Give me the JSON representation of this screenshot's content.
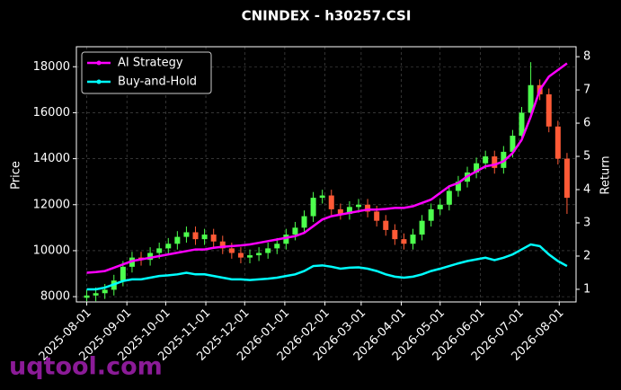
{
  "chart_data": {
    "type": "candlestick",
    "title": "CNINDEX - h30257.CSI",
    "ylabel": "Price",
    "y2label": "Return",
    "watermark": "uqtool.com",
    "x": [
      "2025-08-01",
      "2025-08-08",
      "2025-08-15",
      "2025-08-22",
      "2025-08-29",
      "2025-09-05",
      "2025-09-12",
      "2025-09-19",
      "2025-09-26",
      "2025-10-03",
      "2025-10-10",
      "2025-10-17",
      "2025-10-24",
      "2025-10-31",
      "2025-11-07",
      "2025-11-14",
      "2025-11-21",
      "2025-11-28",
      "2025-12-05",
      "2025-12-12",
      "2025-12-19",
      "2025-12-26",
      "2026-01-02",
      "2026-01-09",
      "2026-01-16",
      "2026-01-23",
      "2026-01-30",
      "2026-02-06",
      "2026-02-13",
      "2026-02-20",
      "2026-02-27",
      "2026-03-06",
      "2026-03-13",
      "2026-03-20",
      "2026-03-27",
      "2026-04-03",
      "2026-04-10",
      "2026-04-17",
      "2026-04-24",
      "2026-05-01",
      "2026-05-08",
      "2026-05-15",
      "2026-05-22",
      "2026-05-29",
      "2026-06-05",
      "2026-06-12",
      "2026-06-19",
      "2026-06-26",
      "2026-07-03",
      "2026-07-10",
      "2026-07-17",
      "2026-07-24",
      "2026-07-31",
      "2026-08-07"
    ],
    "open": [
      7950,
      8050,
      8150,
      8300,
      8700,
      9300,
      9700,
      9600,
      9900,
      10100,
      10300,
      10600,
      10800,
      10500,
      10700,
      10400,
      10100,
      9900,
      9700,
      9800,
      9900,
      10100,
      10300,
      10700,
      11000,
      11500,
      12300,
      12400,
      11800,
      11600,
      11900,
      12000,
      11700,
      11300,
      10900,
      10500,
      10300,
      10700,
      11300,
      11800,
      12000,
      12600,
      13000,
      13400,
      13800,
      14100,
      13600,
      14300,
      15000,
      16000,
      17200,
      16800,
      15400,
      14000
    ],
    "high": [
      8300,
      8400,
      8550,
      8950,
      9550,
      9950,
      9950,
      10150,
      10350,
      10550,
      10850,
      11050,
      11050,
      10950,
      10950,
      10650,
      10350,
      10150,
      10050,
      10150,
      10350,
      10550,
      10950,
      11250,
      11750,
      12550,
      12650,
      12650,
      12050,
      12150,
      12250,
      12250,
      11950,
      11550,
      11150,
      10750,
      10950,
      11550,
      12050,
      12250,
      12850,
      13250,
      13650,
      14050,
      14350,
      14350,
      14550,
      15250,
      16250,
      18200,
      17450,
      17050,
      15650,
      14250
    ],
    "low": [
      7800,
      7800,
      7900,
      8050,
      8450,
      9050,
      9350,
      9350,
      9650,
      9850,
      10050,
      10350,
      10250,
      10250,
      10150,
      9850,
      9650,
      9450,
      9450,
      9550,
      9650,
      9850,
      10050,
      10450,
      10750,
      11250,
      12050,
      11550,
      11350,
      11350,
      11650,
      11450,
      11050,
      10650,
      10250,
      10050,
      10050,
      10450,
      11050,
      11550,
      11750,
      12350,
      12750,
      13150,
      13550,
      13350,
      13350,
      14050,
      14750,
      15750,
      16550,
      15150,
      13750,
      11600
    ],
    "close": [
      8050,
      8150,
      8300,
      8700,
      9300,
      9700,
      9600,
      9900,
      10100,
      10300,
      10600,
      10800,
      10500,
      10700,
      10400,
      10100,
      9900,
      9700,
      9800,
      9900,
      10100,
      10300,
      10700,
      11000,
      11500,
      12300,
      12400,
      11800,
      11600,
      11900,
      12000,
      11700,
      11300,
      10900,
      10500,
      10300,
      10700,
      11300,
      11800,
      12000,
      12600,
      13000,
      13400,
      13800,
      14100,
      13600,
      14300,
      15000,
      16000,
      17200,
      16800,
      15400,
      14000,
      12300
    ],
    "up_color": "#4dff4d",
    "down_color": "#ff5a36",
    "series": [
      {
        "name": "AI Strategy",
        "color": "#ff00ff",
        "axis": "y2",
        "values": [
          1.5,
          1.52,
          1.55,
          1.65,
          1.75,
          1.85,
          1.9,
          1.95,
          2.0,
          2.05,
          2.1,
          2.15,
          2.2,
          2.2,
          2.25,
          2.28,
          2.3,
          2.32,
          2.35,
          2.4,
          2.45,
          2.5,
          2.55,
          2.6,
          2.7,
          2.9,
          3.1,
          3.2,
          3.25,
          3.3,
          3.35,
          3.4,
          3.4,
          3.42,
          3.45,
          3.45,
          3.5,
          3.6,
          3.7,
          3.9,
          4.1,
          4.2,
          4.4,
          4.55,
          4.7,
          4.75,
          4.85,
          5.1,
          5.5,
          6.2,
          7.0,
          7.4,
          7.6,
          7.8
        ]
      },
      {
        "name": "Buy-and-Hold",
        "color": "#00ffff",
        "axis": "y2",
        "values": [
          1.0,
          1.0,
          1.05,
          1.15,
          1.25,
          1.3,
          1.3,
          1.35,
          1.4,
          1.42,
          1.45,
          1.5,
          1.45,
          1.45,
          1.4,
          1.35,
          1.3,
          1.3,
          1.28,
          1.3,
          1.32,
          1.35,
          1.4,
          1.45,
          1.55,
          1.7,
          1.72,
          1.68,
          1.62,
          1.65,
          1.66,
          1.62,
          1.55,
          1.45,
          1.38,
          1.35,
          1.38,
          1.45,
          1.55,
          1.62,
          1.7,
          1.78,
          1.85,
          1.9,
          1.95,
          1.88,
          1.95,
          2.05,
          2.2,
          2.35,
          2.3,
          2.05,
          1.85,
          1.7
        ]
      }
    ],
    "xlim": [
      "2025-07-24",
      "2026-08-14"
    ],
    "xticks": [
      "2025-08-01",
      "2025-09-01",
      "2025-10-01",
      "2025-11-01",
      "2025-12-01",
      "2026-01-01",
      "2026-02-01",
      "2026-03-01",
      "2026-04-01",
      "2026-05-01",
      "2026-06-01",
      "2026-07-01",
      "2026-08-01"
    ],
    "ylim": [
      7770,
      18870
    ],
    "yticks": [
      8000,
      10000,
      12000,
      14000,
      16000,
      18000
    ],
    "y2lim": [
      0.62,
      8.3
    ],
    "y2ticks": [
      1,
      2,
      3,
      4,
      5,
      6,
      7,
      8
    ],
    "grid": true,
    "legend": "upper left"
  }
}
